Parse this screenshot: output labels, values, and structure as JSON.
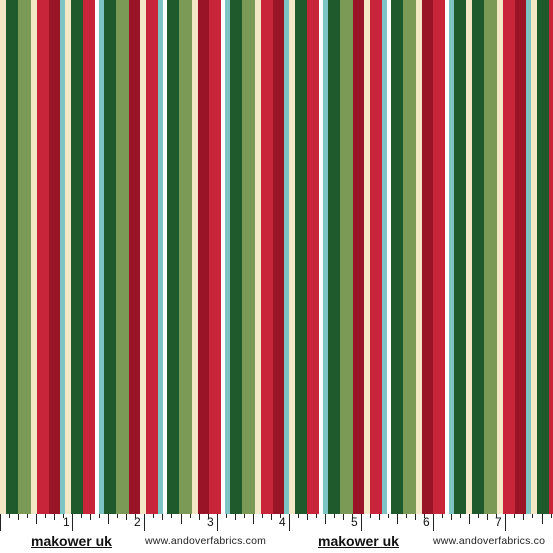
{
  "fabric": {
    "colors": {
      "red": "#c8243a",
      "darkred": "#9a1428",
      "cream": "#f3e7c6",
      "aqua": "#7fc4c4",
      "darkgreen": "#1e5a2c",
      "sage": "#7a9a56",
      "white": "#ffffff"
    },
    "pattern": [
      "cream",
      "darkgreen",
      "sage",
      "cream",
      "red",
      "darkred",
      "aqua",
      "cream",
      "darkgreen",
      "red",
      "white",
      "aqua",
      "darkgreen",
      "sage",
      "darkred",
      "cream",
      "red",
      "aqua",
      "white",
      "darkgreen",
      "sage",
      "cream",
      "darkred",
      "red",
      "white",
      "aqua",
      "darkgreen",
      "sage",
      "cream",
      "red",
      "darkred",
      "aqua",
      "cream",
      "darkgreen",
      "red",
      "white",
      "aqua",
      "darkgreen",
      "sage",
      "darkred",
      "cream",
      "red",
      "aqua",
      "white",
      "darkgreen",
      "sage",
      "cream",
      "darkred",
      "red",
      "white",
      "aqua",
      "darkgreen"
    ]
  },
  "ruler": {
    "numbers": [
      "1",
      "2",
      "3",
      "4",
      "5",
      "6",
      "7"
    ],
    "brand_left": "makower uk",
    "site_left": "www.andoverfabrics.com",
    "brand_right": "makower uk",
    "site_right": "www.andoverfabrics.co"
  }
}
